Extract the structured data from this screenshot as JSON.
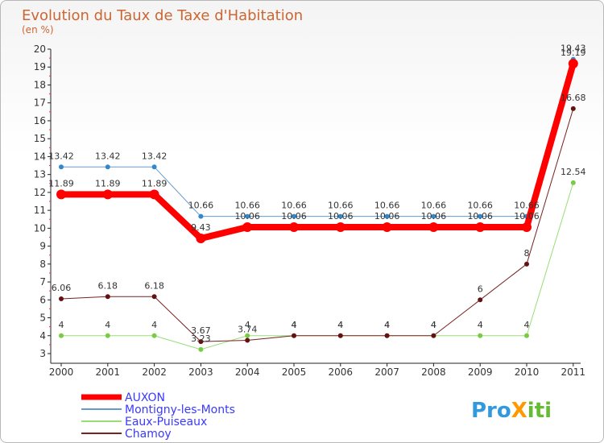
{
  "chart_data": {
    "type": "line",
    "title": "Evolution du Taux de Taxe d'Habitation",
    "subtitle": "(en %)",
    "xlabel": "",
    "ylabel": "",
    "categories": [
      "2000",
      "2001",
      "2002",
      "2003",
      "2004",
      "2005",
      "2006",
      "2007",
      "2008",
      "2009",
      "2010",
      "2011"
    ],
    "ylim": [
      3,
      20
    ],
    "yticks": [
      3,
      4,
      5,
      6,
      7,
      8,
      9,
      10,
      11,
      12,
      13,
      14,
      15,
      16,
      17,
      18,
      19,
      20
    ],
    "grid": false,
    "legend_position": "bottom-left",
    "series": [
      {
        "name": "Montigny-les-Monts",
        "color": "#6699cc",
        "marker": "#3388cc",
        "width": 1,
        "values": [
          13.42,
          13.42,
          13.42,
          10.66,
          10.66,
          10.66,
          10.66,
          10.66,
          10.66,
          10.66,
          10.66,
          19.43
        ],
        "labels": [
          "13.42",
          "13.42",
          "13.42",
          "10.66",
          "10.66",
          "10.66",
          "10.66",
          "10.66",
          "10.66",
          "10.66",
          "10.66",
          "19.43"
        ]
      },
      {
        "name": "Eaux-Puiseaux",
        "color": "#99dd77",
        "marker": "#77cc44",
        "width": 1,
        "values": [
          4,
          4,
          4,
          3.23,
          4,
          4,
          4,
          4,
          4,
          4,
          4,
          12.54
        ],
        "labels": [
          "4",
          "4",
          "4",
          "3.23",
          "4",
          "4",
          "4",
          "4",
          "4",
          "4",
          "4",
          "12.54"
        ]
      },
      {
        "name": "Chamoy",
        "color": "#772222",
        "marker": "#661111",
        "width": 1,
        "values": [
          6.06,
          6.18,
          6.18,
          3.67,
          3.74,
          4,
          4,
          4,
          4,
          6,
          8,
          16.68
        ],
        "labels": [
          "6.06",
          "6.18",
          "6.18",
          "3.67",
          "3.74",
          "4",
          "4",
          "4",
          "4",
          "6",
          "8",
          "16.68"
        ]
      },
      {
        "name": "AUXON",
        "color": "#ff0000",
        "marker": "#ff0000",
        "width": 8,
        "values": [
          11.89,
          11.89,
          11.89,
          9.43,
          10.06,
          10.06,
          10.06,
          10.06,
          10.06,
          10.06,
          10.06,
          19.19
        ],
        "labels": [
          "11.89",
          "11.89",
          "11.89",
          "9.43",
          "10.06",
          "10.06",
          "10.06",
          "10.06",
          "10.06",
          "10.06",
          "10.06",
          "19.19"
        ]
      }
    ],
    "legend": [
      "AUXON",
      "Montigny-les-Monts",
      "Eaux-Puiseaux",
      "Chamoy"
    ]
  },
  "logo": {
    "text": "ProXiti"
  }
}
